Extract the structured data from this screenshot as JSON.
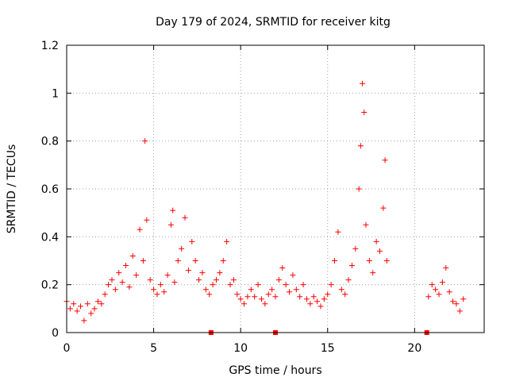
{
  "chart_data": {
    "type": "scatter",
    "title": "Day 179 of 2024, SRMTID for receiver kitg",
    "xlabel": "GPS time / hours",
    "ylabel": "SRMTID / TECUs",
    "xlim": [
      0,
      24
    ],
    "ylim": [
      0,
      1.2
    ],
    "x_ticks": [
      0,
      5,
      10,
      15,
      20
    ],
    "y_ticks": [
      0,
      0.2,
      0.4,
      0.6,
      0.8,
      1,
      1.2
    ],
    "x_tick_labels": [
      "0",
      "5",
      "10",
      "15",
      "20"
    ],
    "y_tick_labels": [
      "0",
      "0.2",
      "0.4",
      "0.6",
      "0.8",
      "1",
      "1.2"
    ],
    "grid": true,
    "marker": "+",
    "color": "#ff0000",
    "series": [
      {
        "name": "SRMTID",
        "points": [
          [
            0.0,
            0.13
          ],
          [
            0.2,
            0.1
          ],
          [
            0.4,
            0.12
          ],
          [
            0.6,
            0.09
          ],
          [
            0.8,
            0.11
          ],
          [
            1.0,
            0.05
          ],
          [
            1.2,
            0.12
          ],
          [
            1.4,
            0.08
          ],
          [
            1.6,
            0.1
          ],
          [
            1.8,
            0.13
          ],
          [
            2.0,
            0.12
          ],
          [
            2.2,
            0.16
          ],
          [
            2.4,
            0.2
          ],
          [
            2.6,
            0.22
          ],
          [
            2.8,
            0.18
          ],
          [
            3.0,
            0.25
          ],
          [
            3.2,
            0.21
          ],
          [
            3.4,
            0.28
          ],
          [
            3.6,
            0.19
          ],
          [
            3.8,
            0.32
          ],
          [
            4.0,
            0.24
          ],
          [
            4.2,
            0.43
          ],
          [
            4.4,
            0.3
          ],
          [
            4.5,
            0.8
          ],
          [
            4.6,
            0.47
          ],
          [
            4.8,
            0.22
          ],
          [
            5.0,
            0.18
          ],
          [
            5.2,
            0.16
          ],
          [
            5.4,
            0.2
          ],
          [
            5.6,
            0.17
          ],
          [
            5.8,
            0.24
          ],
          [
            6.0,
            0.45
          ],
          [
            6.1,
            0.51
          ],
          [
            6.2,
            0.21
          ],
          [
            6.4,
            0.3
          ],
          [
            6.6,
            0.35
          ],
          [
            6.8,
            0.48
          ],
          [
            7.0,
            0.26
          ],
          [
            7.2,
            0.38
          ],
          [
            7.4,
            0.3
          ],
          [
            7.6,
            0.22
          ],
          [
            7.8,
            0.25
          ],
          [
            8.0,
            0.18
          ],
          [
            8.2,
            0.16
          ],
          [
            8.4,
            0.2
          ],
          [
            8.6,
            0.22
          ],
          [
            8.8,
            0.25
          ],
          [
            9.0,
            0.3
          ],
          [
            9.2,
            0.38
          ],
          [
            9.4,
            0.2
          ],
          [
            9.6,
            0.22
          ],
          [
            9.8,
            0.16
          ],
          [
            10.0,
            0.14
          ],
          [
            10.2,
            0.12
          ],
          [
            10.4,
            0.15
          ],
          [
            10.6,
            0.18
          ],
          [
            10.8,
            0.15
          ],
          [
            11.0,
            0.2
          ],
          [
            11.2,
            0.14
          ],
          [
            11.4,
            0.12
          ],
          [
            11.6,
            0.16
          ],
          [
            11.8,
            0.18
          ],
          [
            12.0,
            0.15
          ],
          [
            12.2,
            0.22
          ],
          [
            12.4,
            0.27
          ],
          [
            12.6,
            0.2
          ],
          [
            12.8,
            0.17
          ],
          [
            13.0,
            0.24
          ],
          [
            13.2,
            0.18
          ],
          [
            13.4,
            0.15
          ],
          [
            13.6,
            0.2
          ],
          [
            13.8,
            0.14
          ],
          [
            14.0,
            0.12
          ],
          [
            14.2,
            0.15
          ],
          [
            14.4,
            0.13
          ],
          [
            14.6,
            0.11
          ],
          [
            14.8,
            0.14
          ],
          [
            15.0,
            0.16
          ],
          [
            15.2,
            0.2
          ],
          [
            15.4,
            0.3
          ],
          [
            15.6,
            0.42
          ],
          [
            15.8,
            0.18
          ],
          [
            16.0,
            0.16
          ],
          [
            16.2,
            0.22
          ],
          [
            16.4,
            0.28
          ],
          [
            16.6,
            0.35
          ],
          [
            16.8,
            0.6
          ],
          [
            16.9,
            0.78
          ],
          [
            17.0,
            1.04
          ],
          [
            17.1,
            0.92
          ],
          [
            17.2,
            0.45
          ],
          [
            17.4,
            0.3
          ],
          [
            17.6,
            0.25
          ],
          [
            17.8,
            0.38
          ],
          [
            18.0,
            0.34
          ],
          [
            18.2,
            0.52
          ],
          [
            18.3,
            0.72
          ],
          [
            18.4,
            0.3
          ],
          [
            20.8,
            0.15
          ],
          [
            21.0,
            0.2
          ],
          [
            21.2,
            0.18
          ],
          [
            21.4,
            0.16
          ],
          [
            21.6,
            0.21
          ],
          [
            21.8,
            0.27
          ],
          [
            22.0,
            0.17
          ],
          [
            22.2,
            0.13
          ],
          [
            22.4,
            0.12
          ],
          [
            22.6,
            0.09
          ],
          [
            22.8,
            0.14
          ]
        ]
      }
    ],
    "axis_markers_x": [
      8.3,
      12.0,
      20.7
    ]
  }
}
